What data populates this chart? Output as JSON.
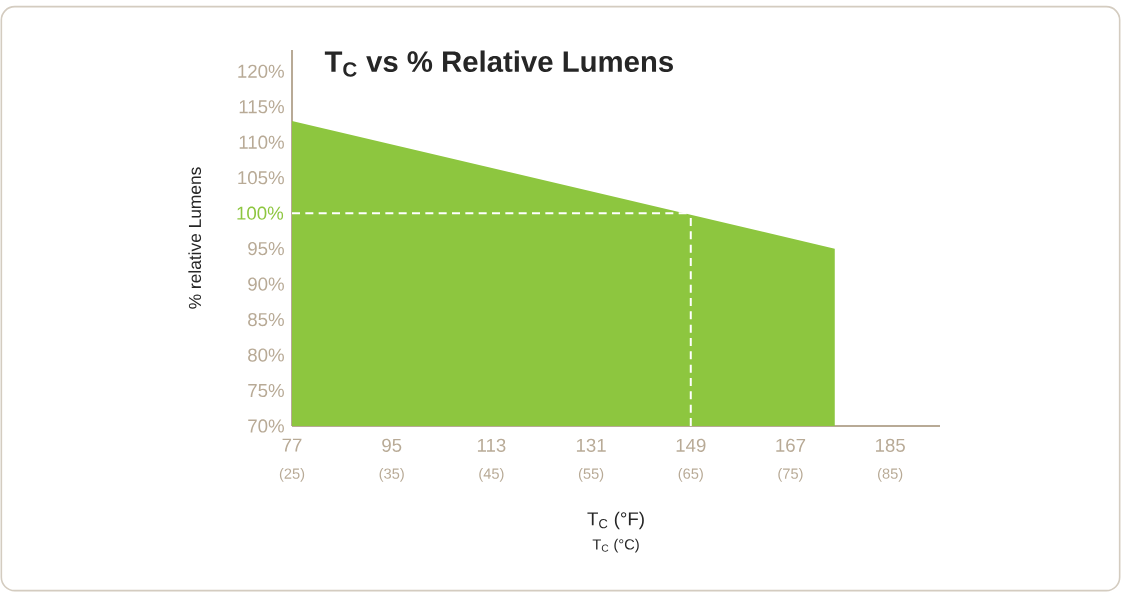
{
  "chart_data": {
    "type": "area",
    "title": "T$_{C}$ vs % Relative Lumens",
    "xlabel": "T$_{C}$ (°F)",
    "ylabel": "% relative Lumens",
    "x2label": "T$_{C}$ (°C)",
    "x": [
      77,
      175
    ],
    "values": [
      113,
      95
    ],
    "color": "#8dc63f",
    "xlim": [
      77,
      194
    ],
    "ylim": [
      70,
      123
    ],
    "x2lim": [
      25,
      90
    ],
    "xticks": [
      77,
      95,
      113,
      131,
      149,
      167,
      185
    ],
    "x2ticks": [
      {
        "value": 25,
        "label": "(25)"
      },
      {
        "value": 35,
        "label": "(35)"
      },
      {
        "value": 45,
        "label": "(45)"
      },
      {
        "value": 55,
        "label": "(55)"
      },
      {
        "value": 65,
        "label": "(65)"
      },
      {
        "value": 75,
        "label": "(75)"
      },
      {
        "value": 85,
        "label": "(85)"
      }
    ],
    "yticks": [
      {
        "value": 70,
        "label": "70%"
      },
      {
        "value": 75,
        "label": "75%"
      },
      {
        "value": 80,
        "label": "80%"
      },
      {
        "value": 85,
        "label": "85%"
      },
      {
        "value": 90,
        "label": "90%"
      },
      {
        "value": 95,
        "label": "95%"
      },
      {
        "value": 100,
        "label": null
      },
      {
        "value": 105,
        "label": "105%"
      },
      {
        "value": 110,
        "label": "110%"
      },
      {
        "value": 115,
        "label": "115%"
      },
      {
        "value": 120,
        "label": "120%"
      }
    ],
    "ref_lines": [
      {
        "axis": "y",
        "value": 100,
        "label": "100%",
        "color": "#ffffff",
        "line_style": "dashed"
      },
      {
        "axis": "x",
        "value": 149,
        "color": "#ffffff",
        "line_style": "dashed"
      }
    ],
    "grid": false
  }
}
